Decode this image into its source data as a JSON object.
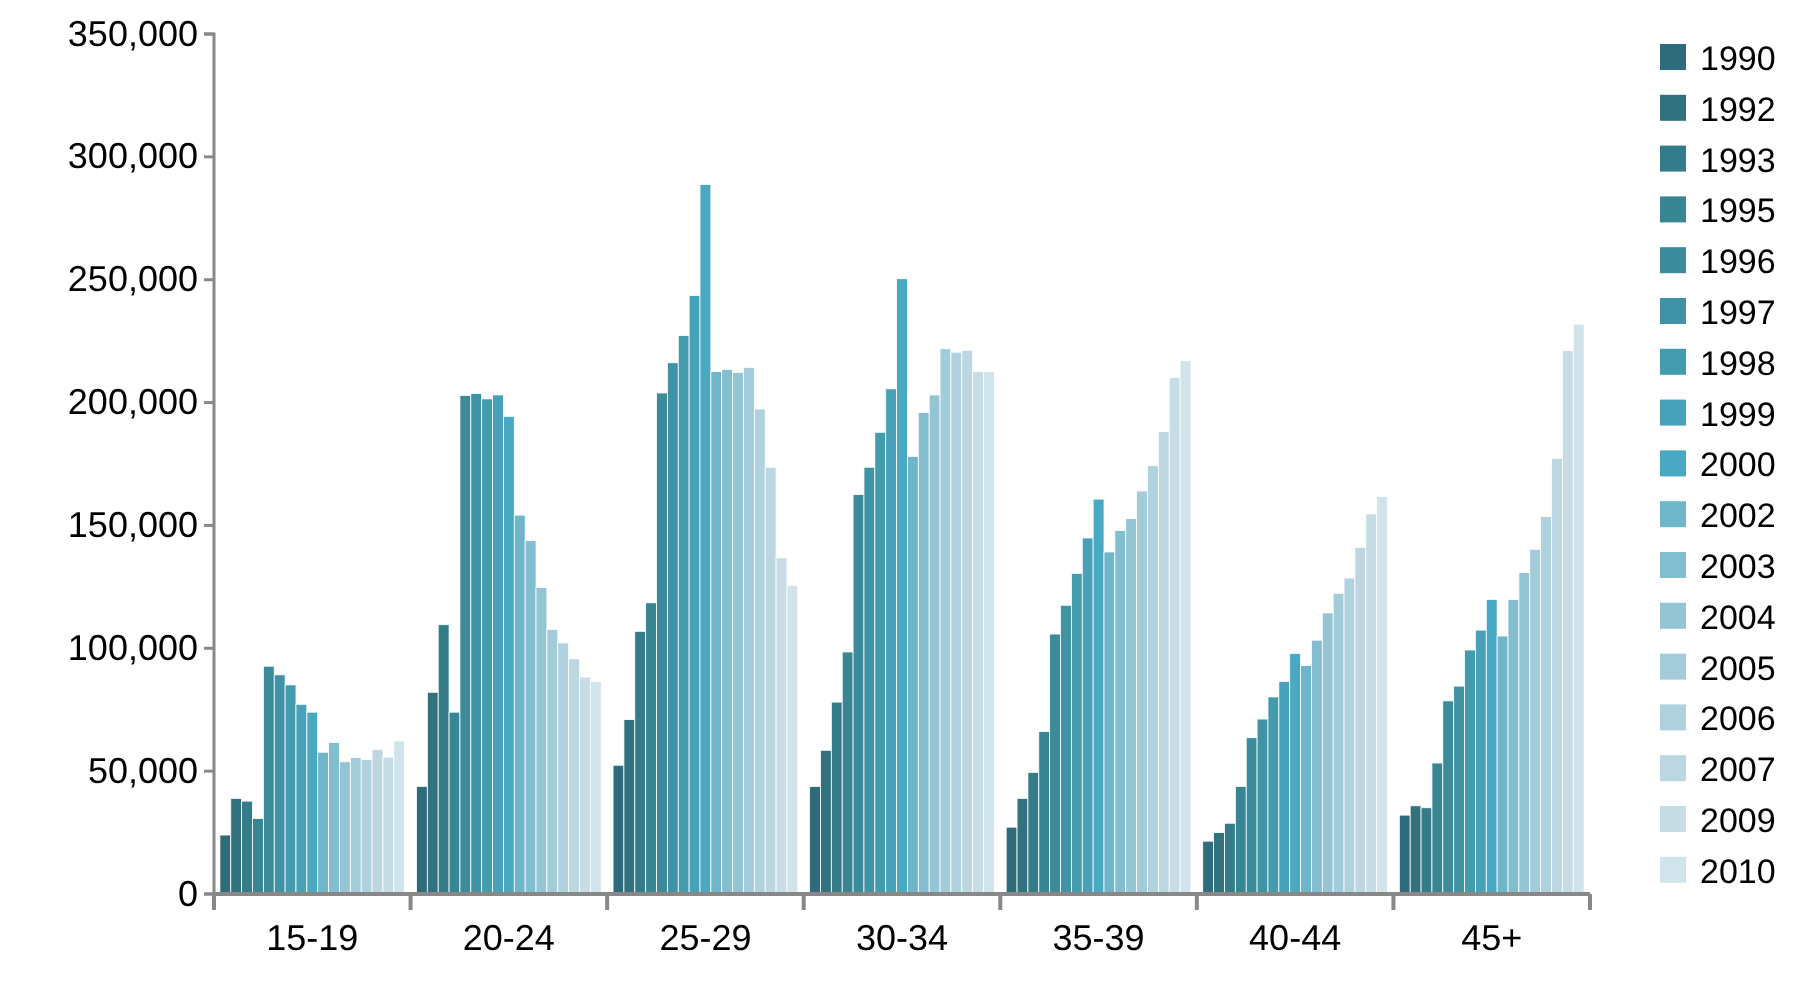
{
  "chart_data": {
    "type": "bar",
    "categories": [
      "15-19",
      "20-24",
      "25-29",
      "30-34",
      "35-39",
      "40-44",
      "45+"
    ],
    "ylim": [
      0,
      350000
    ],
    "yticks": [
      {
        "value": 0,
        "label": "0"
      },
      {
        "value": 50000,
        "label": "50,000"
      },
      {
        "value": 100000,
        "label": "100,000"
      },
      {
        "value": 150000,
        "label": "150,000"
      },
      {
        "value": 200000,
        "label": "200,000"
      },
      {
        "value": 250000,
        "label": "250,000"
      },
      {
        "value": 300000,
        "label": "300,000"
      },
      {
        "value": 350000,
        "label": "350,000"
      }
    ],
    "grid": false,
    "legend": "right",
    "series": [
      {
        "name": "1990",
        "color": "#2e6b7b",
        "values": [
          24000,
          43800,
          52400,
          43800,
          27200,
          21500,
          32100
        ]
      },
      {
        "name": "1992",
        "color": "#32727f",
        "values": [
          38900,
          82100,
          71000,
          58500,
          38900,
          25000,
          35900
        ]
      },
      {
        "name": "1993",
        "color": "#357c8b",
        "values": [
          37800,
          109600,
          106900,
          78100,
          49500,
          28800,
          35100
        ]
      },
      {
        "name": "1995",
        "color": "#388594",
        "values": [
          30700,
          74000,
          118500,
          98500,
          66100,
          43800,
          53300
        ]
      },
      {
        "name": "1996",
        "color": "#3b8b9b",
        "values": [
          92700,
          202900,
          203900,
          162600,
          105800,
          63600,
          78600
        ]
      },
      {
        "name": "1997",
        "color": "#3f93a5",
        "values": [
          89200,
          203700,
          216200,
          173700,
          117500,
          71200,
          84600
        ]
      },
      {
        "name": "1998",
        "color": "#439bae",
        "values": [
          85100,
          201500,
          227300,
          187900,
          130500,
          80200,
          99300
        ]
      },
      {
        "name": "1999",
        "color": "#47a2b9",
        "values": [
          77200,
          203100,
          243600,
          205600,
          144900,
          86500,
          107400
        ]
      },
      {
        "name": "2000",
        "color": "#4aa9c2",
        "values": [
          74000,
          194400,
          288800,
          250400,
          160700,
          97900,
          119900
        ]
      },
      {
        "name": "2002",
        "color": "#6fb6ca",
        "values": [
          57700,
          154200,
          212600,
          178100,
          139200,
          93000,
          105000
        ]
      },
      {
        "name": "2003",
        "color": "#83bdd0",
        "values": [
          61700,
          143800,
          213500,
          196000,
          147900,
          103300,
          119900
        ]
      },
      {
        "name": "2004",
        "color": "#93c5d5",
        "values": [
          53800,
          124800,
          212300,
          203100,
          152800,
          114400,
          130800
        ]
      },
      {
        "name": "2005",
        "color": "#a2ccd9",
        "values": [
          55500,
          107700,
          214300,
          221900,
          164000,
          122400,
          140300
        ]
      },
      {
        "name": "2006",
        "color": "#afd2de",
        "values": [
          54700,
          102200,
          197400,
          220500,
          174300,
          128600,
          153600
        ]
      },
      {
        "name": "2007",
        "color": "#bcd7e1",
        "values": [
          58700,
          95700,
          173700,
          221300,
          188200,
          141100,
          177300
        ]
      },
      {
        "name": "2009",
        "color": "#c6dde6",
        "values": [
          55700,
          88300,
          136800,
          212600,
          210200,
          154700,
          221100
        ]
      },
      {
        "name": "2010",
        "color": "#d1e4eb",
        "values": [
          62300,
          86500,
          125600,
          212600,
          217000,
          161800,
          231900
        ]
      }
    ]
  }
}
